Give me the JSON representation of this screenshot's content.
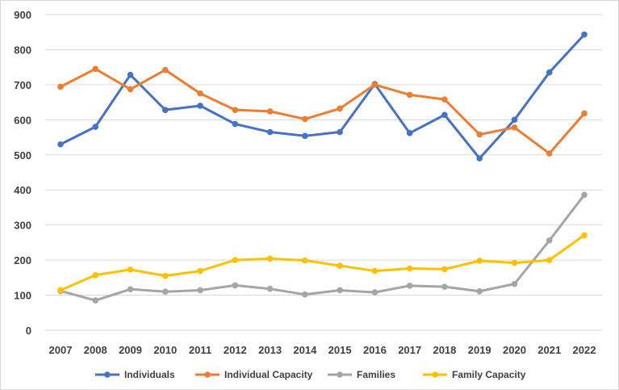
{
  "chart_data": {
    "type": "line",
    "title": "",
    "xlabel": "",
    "ylabel": "",
    "categories": [
      "2007",
      "2008",
      "2009",
      "2010",
      "2011",
      "2012",
      "2013",
      "2014",
      "2015",
      "2016",
      "2017",
      "2018",
      "2019",
      "2020",
      "2021",
      "2022"
    ],
    "ylim": [
      0,
      900
    ],
    "yticks": [
      0,
      100,
      200,
      300,
      400,
      500,
      600,
      700,
      800,
      900
    ],
    "grid": true,
    "legend_position": "bottom",
    "series": [
      {
        "name": "Individuals",
        "color": "#4472C4",
        "values": [
          530,
          580,
          728,
          628,
          640,
          588,
          565,
          554,
          565,
          702,
          562,
          614,
          490,
          600,
          735,
          843
        ]
      },
      {
        "name": "Individual Capacity",
        "color": "#ED7D31",
        "values": [
          694,
          745,
          687,
          742,
          675,
          628,
          624,
          602,
          632,
          700,
          671,
          658,
          558,
          578,
          504,
          618
        ]
      },
      {
        "name": "Families",
        "color": "#A5A5A5",
        "values": [
          112,
          85,
          117,
          110,
          114,
          128,
          118,
          102,
          114,
          108,
          127,
          124,
          111,
          132,
          256,
          386
        ]
      },
      {
        "name": "Family Capacity",
        "color": "#FFC000",
        "values": [
          114,
          157,
          173,
          155,
          169,
          200,
          204,
          199,
          184,
          169,
          176,
          174,
          198,
          192,
          200,
          271
        ]
      }
    ]
  }
}
